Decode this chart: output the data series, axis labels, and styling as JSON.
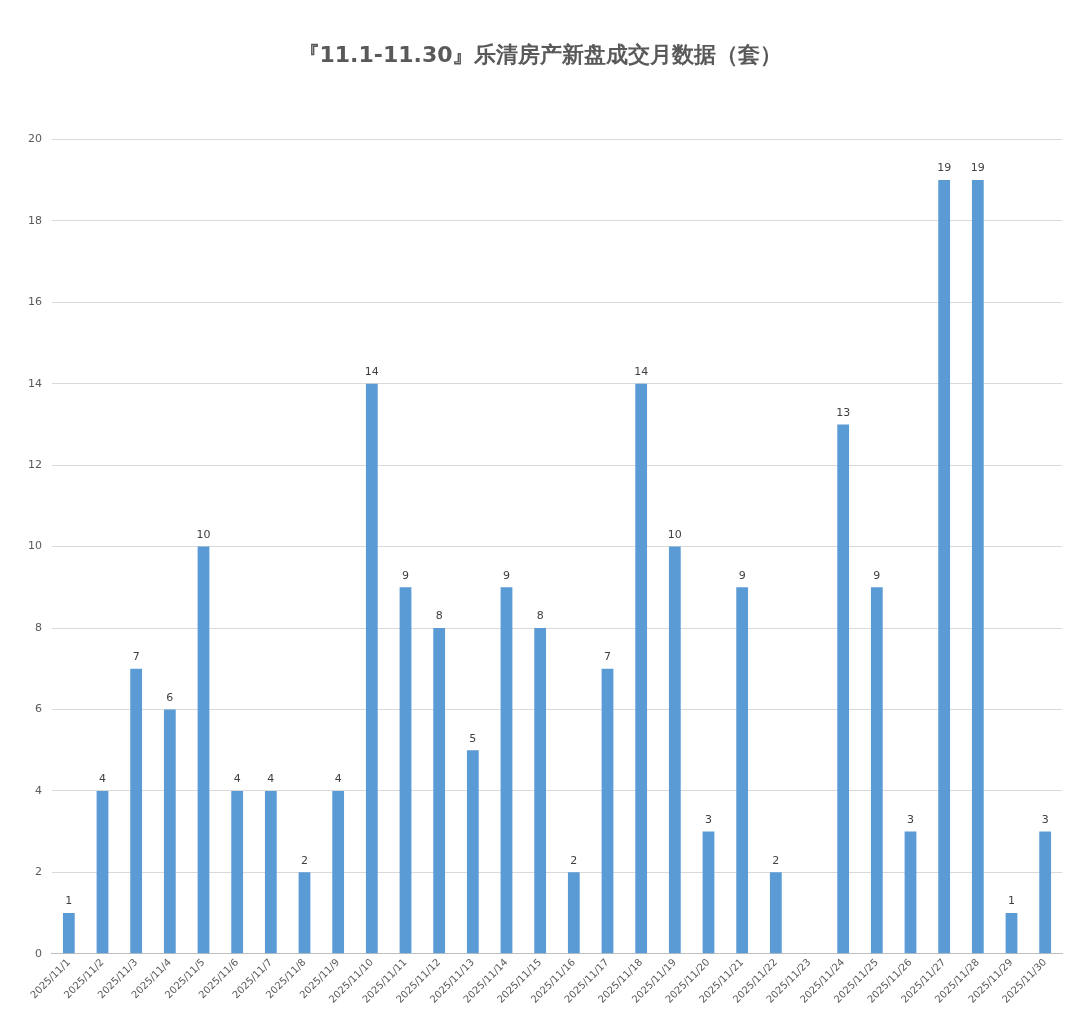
{
  "chart_data": {
    "type": "bar",
    "title": "『11.1-11.30』乐清房产新盘成交月数据（套）",
    "categories": [
      "2025/11/1",
      "2025/11/2",
      "2025/11/3",
      "2025/11/4",
      "2025/11/5",
      "2025/11/6",
      "2025/11/7",
      "2025/11/8",
      "2025/11/9",
      "2025/11/10",
      "2025/11/11",
      "2025/11/12",
      "2025/11/13",
      "2025/11/14",
      "2025/11/15",
      "2025/11/16",
      "2025/11/17",
      "2025/11/18",
      "2025/11/19",
      "2025/11/20",
      "2025/11/21",
      "2025/11/22",
      "2025/11/23",
      "2025/11/24",
      "2025/11/25",
      "2025/11/26",
      "2025/11/27",
      "2025/11/28",
      "2025/11/29",
      "2025/11/30"
    ],
    "values": [
      1,
      4,
      7,
      6,
      10,
      4,
      4,
      2,
      4,
      14,
      9,
      8,
      5,
      9,
      8,
      2,
      7,
      14,
      10,
      3,
      9,
      2,
      0,
      13,
      9,
      3,
      19,
      19,
      1,
      3
    ],
    "value_labels": [
      "1",
      "4",
      "7",
      "6",
      "10",
      "4",
      "4",
      "2",
      "4",
      "14",
      "9",
      "8",
      "5",
      "9",
      "8",
      "2",
      "7",
      "14",
      "10",
      "3",
      "9",
      "2",
      null,
      "13",
      "9",
      "3",
      "19",
      "19",
      "1",
      "3"
    ],
    "color": "#5b9bd5",
    "ylim": [
      0,
      20
    ],
    "yticks": [
      0,
      2,
      4,
      6,
      8,
      10,
      12,
      14,
      16,
      18,
      20
    ],
    "grid": "y",
    "legend": false
  }
}
